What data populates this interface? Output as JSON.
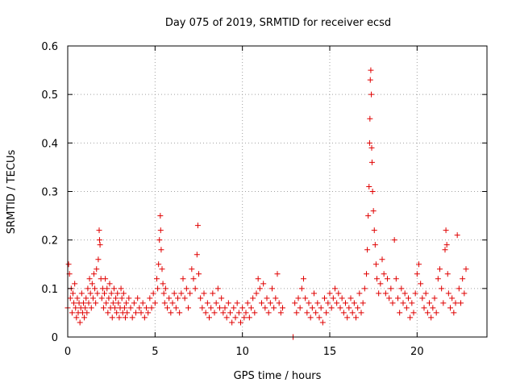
{
  "chart_data": {
    "type": "scatter",
    "title": "Day 075 of 2019, SRMTID for receiver ecsd",
    "xlabel": "GPS time / hours",
    "ylabel": "SRMTID / TECUs",
    "xlim": [
      0,
      24
    ],
    "ylim": [
      0,
      0.6
    ],
    "x_ticks": [
      0,
      5,
      10,
      15,
      20
    ],
    "x_tick_labels": [
      "0",
      "5",
      "10",
      "15",
      "20"
    ],
    "y_ticks": [
      0,
      0.1,
      0.2,
      0.3,
      0.4,
      0.5,
      0.6
    ],
    "y_tick_labels": [
      "0",
      "0.1",
      "0.2",
      "0.3",
      "0.4",
      "0.5",
      "0.6"
    ],
    "grid": true,
    "marker": "+",
    "color": "#e00000",
    "series": [
      {
        "name": "SRMTID",
        "points": [
          [
            0.0,
            0.06
          ],
          [
            0.05,
            0.15
          ],
          [
            0.1,
            0.13
          ],
          [
            0.15,
            0.08
          ],
          [
            0.2,
            0.1
          ],
          [
            0.25,
            0.05
          ],
          [
            0.3,
            0.09
          ],
          [
            0.35,
            0.07
          ],
          [
            0.4,
            0.11
          ],
          [
            0.45,
            0.06
          ],
          [
            0.5,
            0.04
          ],
          [
            0.55,
            0.08
          ],
          [
            0.6,
            0.05
          ],
          [
            0.65,
            0.07
          ],
          [
            0.7,
            0.03
          ],
          [
            0.75,
            0.06
          ],
          [
            0.8,
            0.09
          ],
          [
            0.85,
            0.05
          ],
          [
            0.9,
            0.07
          ],
          [
            0.95,
            0.04
          ],
          [
            1.0,
            0.06
          ],
          [
            1.05,
            0.08
          ],
          [
            1.1,
            0.05
          ],
          [
            1.15,
            0.1
          ],
          [
            1.2,
            0.07
          ],
          [
            1.25,
            0.12
          ],
          [
            1.3,
            0.09
          ],
          [
            1.35,
            0.06
          ],
          [
            1.4,
            0.11
          ],
          [
            1.45,
            0.08
          ],
          [
            1.5,
            0.13
          ],
          [
            1.55,
            0.1
          ],
          [
            1.6,
            0.07
          ],
          [
            1.65,
            0.14
          ],
          [
            1.7,
            0.09
          ],
          [
            1.75,
            0.16
          ],
          [
            1.8,
            0.22
          ],
          [
            1.82,
            0.2
          ],
          [
            1.85,
            0.19
          ],
          [
            1.9,
            0.12
          ],
          [
            1.95,
            0.08
          ],
          [
            2.0,
            0.1
          ],
          [
            2.05,
            0.06
          ],
          [
            2.1,
            0.09
          ],
          [
            2.15,
            0.12
          ],
          [
            2.2,
            0.07
          ],
          [
            2.25,
            0.1
          ],
          [
            2.3,
            0.05
          ],
          [
            2.35,
            0.08
          ],
          [
            2.4,
            0.11
          ],
          [
            2.45,
            0.06
          ],
          [
            2.5,
            0.09
          ],
          [
            2.55,
            0.04
          ],
          [
            2.6,
            0.07
          ],
          [
            2.65,
            0.1
          ],
          [
            2.7,
            0.06
          ],
          [
            2.75,
            0.08
          ],
          [
            2.8,
            0.05
          ],
          [
            2.85,
            0.09
          ],
          [
            2.9,
            0.07
          ],
          [
            2.95,
            0.04
          ],
          [
            3.0,
            0.06
          ],
          [
            3.05,
            0.1
          ],
          [
            3.1,
            0.08
          ],
          [
            3.15,
            0.05
          ],
          [
            3.2,
            0.09
          ],
          [
            3.25,
            0.06
          ],
          [
            3.3,
            0.04
          ],
          [
            3.35,
            0.07
          ],
          [
            3.4,
            0.05
          ],
          [
            3.5,
            0.08
          ],
          [
            3.6,
            0.06
          ],
          [
            3.7,
            0.04
          ],
          [
            3.8,
            0.07
          ],
          [
            3.9,
            0.05
          ],
          [
            4.0,
            0.08
          ],
          [
            4.1,
            0.06
          ],
          [
            4.2,
            0.05
          ],
          [
            4.3,
            0.07
          ],
          [
            4.4,
            0.04
          ],
          [
            4.5,
            0.06
          ],
          [
            4.6,
            0.05
          ],
          [
            4.7,
            0.08
          ],
          [
            4.8,
            0.06
          ],
          [
            4.9,
            0.09
          ],
          [
            5.0,
            0.07
          ],
          [
            5.1,
            0.12
          ],
          [
            5.15,
            0.1
          ],
          [
            5.2,
            0.15
          ],
          [
            5.25,
            0.2
          ],
          [
            5.3,
            0.25
          ],
          [
            5.32,
            0.22
          ],
          [
            5.35,
            0.18
          ],
          [
            5.4,
            0.14
          ],
          [
            5.45,
            0.11
          ],
          [
            5.5,
            0.09
          ],
          [
            5.55,
            0.07
          ],
          [
            5.6,
            0.1
          ],
          [
            5.7,
            0.06
          ],
          [
            5.8,
            0.08
          ],
          [
            5.9,
            0.05
          ],
          [
            6.0,
            0.07
          ],
          [
            6.1,
            0.09
          ],
          [
            6.2,
            0.06
          ],
          [
            6.3,
            0.08
          ],
          [
            6.4,
            0.05
          ],
          [
            6.5,
            0.09
          ],
          [
            6.6,
            0.12
          ],
          [
            6.7,
            0.08
          ],
          [
            6.8,
            0.1
          ],
          [
            6.9,
            0.06
          ],
          [
            7.0,
            0.09
          ],
          [
            7.1,
            0.14
          ],
          [
            7.2,
            0.12
          ],
          [
            7.3,
            0.1
          ],
          [
            7.4,
            0.17
          ],
          [
            7.45,
            0.23
          ],
          [
            7.5,
            0.13
          ],
          [
            7.6,
            0.08
          ],
          [
            7.7,
            0.06
          ],
          [
            7.8,
            0.09
          ],
          [
            7.9,
            0.05
          ],
          [
            8.0,
            0.07
          ],
          [
            8.1,
            0.04
          ],
          [
            8.2,
            0.06
          ],
          [
            8.3,
            0.09
          ],
          [
            8.4,
            0.05
          ],
          [
            8.5,
            0.07
          ],
          [
            8.6,
            0.1
          ],
          [
            8.7,
            0.06
          ],
          [
            8.8,
            0.08
          ],
          [
            8.9,
            0.05
          ],
          [
            9.0,
            0.06
          ],
          [
            9.1,
            0.04
          ],
          [
            9.2,
            0.07
          ],
          [
            9.3,
            0.05
          ],
          [
            9.4,
            0.03
          ],
          [
            9.5,
            0.06
          ],
          [
            9.6,
            0.04
          ],
          [
            9.7,
            0.07
          ],
          [
            9.8,
            0.05
          ],
          [
            9.9,
            0.03
          ],
          [
            10.0,
            0.06
          ],
          [
            10.1,
            0.04
          ],
          [
            10.2,
            0.05
          ],
          [
            10.3,
            0.07
          ],
          [
            10.4,
            0.04
          ],
          [
            10.5,
            0.06
          ],
          [
            10.6,
            0.08
          ],
          [
            10.7,
            0.05
          ],
          [
            10.8,
            0.09
          ],
          [
            10.9,
            0.12
          ],
          [
            11.0,
            0.1
          ],
          [
            11.1,
            0.07
          ],
          [
            11.2,
            0.11
          ],
          [
            11.3,
            0.06
          ],
          [
            11.4,
            0.08
          ],
          [
            11.5,
            0.05
          ],
          [
            11.6,
            0.07
          ],
          [
            11.7,
            0.1
          ],
          [
            11.8,
            0.06
          ],
          [
            11.9,
            0.08
          ],
          [
            12.0,
            0.13
          ],
          [
            12.1,
            0.07
          ],
          [
            12.2,
            0.05
          ],
          [
            12.3,
            0.06
          ],
          [
            12.9,
            0.0
          ],
          [
            13.0,
            0.07
          ],
          [
            13.1,
            0.05
          ],
          [
            13.2,
            0.08
          ],
          [
            13.3,
            0.06
          ],
          [
            13.4,
            0.1
          ],
          [
            13.5,
            0.12
          ],
          [
            13.6,
            0.08
          ],
          [
            13.7,
            0.05
          ],
          [
            13.8,
            0.07
          ],
          [
            13.9,
            0.04
          ],
          [
            14.0,
            0.06
          ],
          [
            14.1,
            0.09
          ],
          [
            14.2,
            0.05
          ],
          [
            14.3,
            0.07
          ],
          [
            14.4,
            0.04
          ],
          [
            14.5,
            0.06
          ],
          [
            14.6,
            0.03
          ],
          [
            14.7,
            0.08
          ],
          [
            14.8,
            0.05
          ],
          [
            14.9,
            0.07
          ],
          [
            15.0,
            0.09
          ],
          [
            15.1,
            0.06
          ],
          [
            15.2,
            0.08
          ],
          [
            15.3,
            0.1
          ],
          [
            15.4,
            0.07
          ],
          [
            15.5,
            0.09
          ],
          [
            15.6,
            0.06
          ],
          [
            15.7,
            0.08
          ],
          [
            15.8,
            0.05
          ],
          [
            15.9,
            0.07
          ],
          [
            16.0,
            0.04
          ],
          [
            16.1,
            0.06
          ],
          [
            16.2,
            0.08
          ],
          [
            16.3,
            0.05
          ],
          [
            16.4,
            0.07
          ],
          [
            16.5,
            0.04
          ],
          [
            16.6,
            0.06
          ],
          [
            16.7,
            0.09
          ],
          [
            16.8,
            0.05
          ],
          [
            16.9,
            0.07
          ],
          [
            17.0,
            0.1
          ],
          [
            17.1,
            0.13
          ],
          [
            17.15,
            0.18
          ],
          [
            17.2,
            0.25
          ],
          [
            17.25,
            0.31
          ],
          [
            17.28,
            0.4
          ],
          [
            17.3,
            0.45
          ],
          [
            17.32,
            0.53
          ],
          [
            17.35,
            0.55
          ],
          [
            17.38,
            0.5
          ],
          [
            17.4,
            0.39
          ],
          [
            17.42,
            0.36
          ],
          [
            17.45,
            0.3
          ],
          [
            17.5,
            0.26
          ],
          [
            17.55,
            0.22
          ],
          [
            17.6,
            0.19
          ],
          [
            17.65,
            0.15
          ],
          [
            17.7,
            0.12
          ],
          [
            17.8,
            0.09
          ],
          [
            17.9,
            0.11
          ],
          [
            18.0,
            0.16
          ],
          [
            18.1,
            0.13
          ],
          [
            18.2,
            0.09
          ],
          [
            18.3,
            0.12
          ],
          [
            18.4,
            0.08
          ],
          [
            18.5,
            0.1
          ],
          [
            18.6,
            0.07
          ],
          [
            18.7,
            0.2
          ],
          [
            18.8,
            0.12
          ],
          [
            18.9,
            0.08
          ],
          [
            19.0,
            0.05
          ],
          [
            19.1,
            0.1
          ],
          [
            19.2,
            0.07
          ],
          [
            19.3,
            0.09
          ],
          [
            19.4,
            0.06
          ],
          [
            19.5,
            0.08
          ],
          [
            19.6,
            0.04
          ],
          [
            19.7,
            0.07
          ],
          [
            19.8,
            0.05
          ],
          [
            19.9,
            0.09
          ],
          [
            20.0,
            0.13
          ],
          [
            20.1,
            0.15
          ],
          [
            20.2,
            0.11
          ],
          [
            20.3,
            0.08
          ],
          [
            20.4,
            0.06
          ],
          [
            20.5,
            0.09
          ],
          [
            20.6,
            0.05
          ],
          [
            20.7,
            0.07
          ],
          [
            20.8,
            0.04
          ],
          [
            20.9,
            0.06
          ],
          [
            21.0,
            0.08
          ],
          [
            21.1,
            0.05
          ],
          [
            21.2,
            0.12
          ],
          [
            21.3,
            0.14
          ],
          [
            21.4,
            0.1
          ],
          [
            21.5,
            0.07
          ],
          [
            21.6,
            0.18
          ],
          [
            21.65,
            0.22
          ],
          [
            21.7,
            0.19
          ],
          [
            21.75,
            0.13
          ],
          [
            21.8,
            0.09
          ],
          [
            21.9,
            0.06
          ],
          [
            22.0,
            0.08
          ],
          [
            22.1,
            0.05
          ],
          [
            22.2,
            0.07
          ],
          [
            22.3,
            0.21
          ],
          [
            22.4,
            0.1
          ],
          [
            22.5,
            0.07
          ],
          [
            22.6,
            0.12
          ],
          [
            22.7,
            0.09
          ],
          [
            22.8,
            0.14
          ]
        ]
      }
    ]
  }
}
